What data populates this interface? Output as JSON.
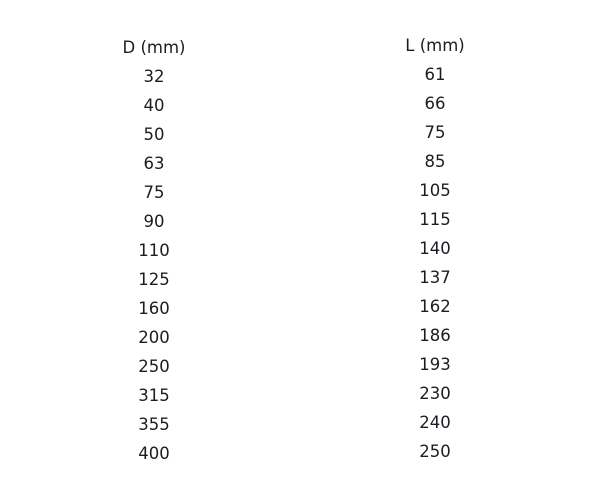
{
  "table": {
    "columns": [
      {
        "header": "D (mm)",
        "values": [
          "32",
          "40",
          "50",
          "63",
          "75",
          "90",
          "110",
          "125",
          "160",
          "200",
          "250",
          "315",
          "355",
          "400"
        ]
      },
      {
        "header": "L (mm)",
        "values": [
          "61",
          "66",
          "75",
          "85",
          "105",
          "115",
          "140",
          "137",
          "162",
          "186",
          "193",
          "230",
          "240",
          "250"
        ]
      }
    ]
  }
}
